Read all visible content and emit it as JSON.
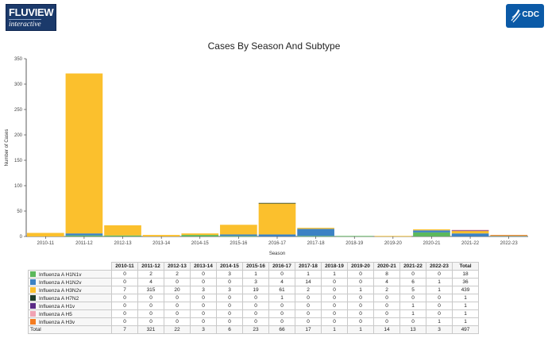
{
  "header": {
    "logo_line1": "FLUVIEW",
    "logo_line2": "interactive",
    "cdc_label": "CDC"
  },
  "chart_data": {
    "type": "bar",
    "stacked": true,
    "title": "Cases By Season And Subtype",
    "xlabel": "Season",
    "ylabel": "Number of Cases",
    "ylim": [
      0,
      350
    ],
    "yticks": [
      0,
      50,
      100,
      150,
      200,
      250,
      300,
      350
    ],
    "grid": false,
    "categories": [
      "2010-11",
      "2011-12",
      "2012-13",
      "2013-14",
      "2014-15",
      "2015-16",
      "2016-17",
      "2017-18",
      "2018-19",
      "2019-20",
      "2020-21",
      "2021-22",
      "2022-23"
    ],
    "series": [
      {
        "name": "Influenza A H1N1v",
        "color": "#5cb85c",
        "values": [
          0,
          2,
          2,
          0,
          3,
          1,
          0,
          1,
          1,
          0,
          8,
          0,
          0
        ]
      },
      {
        "name": "Influenza A H1N2v",
        "color": "#3c82c4",
        "values": [
          0,
          4,
          0,
          0,
          0,
          3,
          4,
          14,
          0,
          0,
          4,
          6,
          1
        ]
      },
      {
        "name": "Influenza A H3N2v",
        "color": "#fbc02d",
        "values": [
          7,
          315,
          20,
          3,
          3,
          19,
          61,
          2,
          0,
          1,
          2,
          5,
          1
        ]
      },
      {
        "name": "Influenza A H7N2",
        "color": "#1f3d2b",
        "values": [
          0,
          0,
          0,
          0,
          0,
          0,
          1,
          0,
          0,
          0,
          0,
          0,
          0
        ]
      },
      {
        "name": "Influenza A H1v",
        "color": "#5b2a86",
        "values": [
          0,
          0,
          0,
          0,
          0,
          0,
          0,
          0,
          0,
          0,
          0,
          1,
          0
        ]
      },
      {
        "name": "Influenza A H5",
        "color": "#f0a3b3",
        "values": [
          0,
          0,
          0,
          0,
          0,
          0,
          0,
          0,
          0,
          0,
          0,
          1,
          0
        ]
      },
      {
        "name": "Influenza A H3v",
        "color": "#f47c20",
        "values": [
          0,
          0,
          0,
          0,
          0,
          0,
          0,
          0,
          0,
          0,
          0,
          0,
          1
        ]
      }
    ],
    "totals": [
      7,
      321,
      22,
      3,
      6,
      23,
      66,
      17,
      1,
      1,
      14,
      13,
      3
    ],
    "grand_totals": [
      18,
      36,
      439,
      1,
      1,
      1,
      1
    ],
    "overall_total": 497
  },
  "table": {
    "total_header": "Total",
    "total_row_label": "Total"
  }
}
